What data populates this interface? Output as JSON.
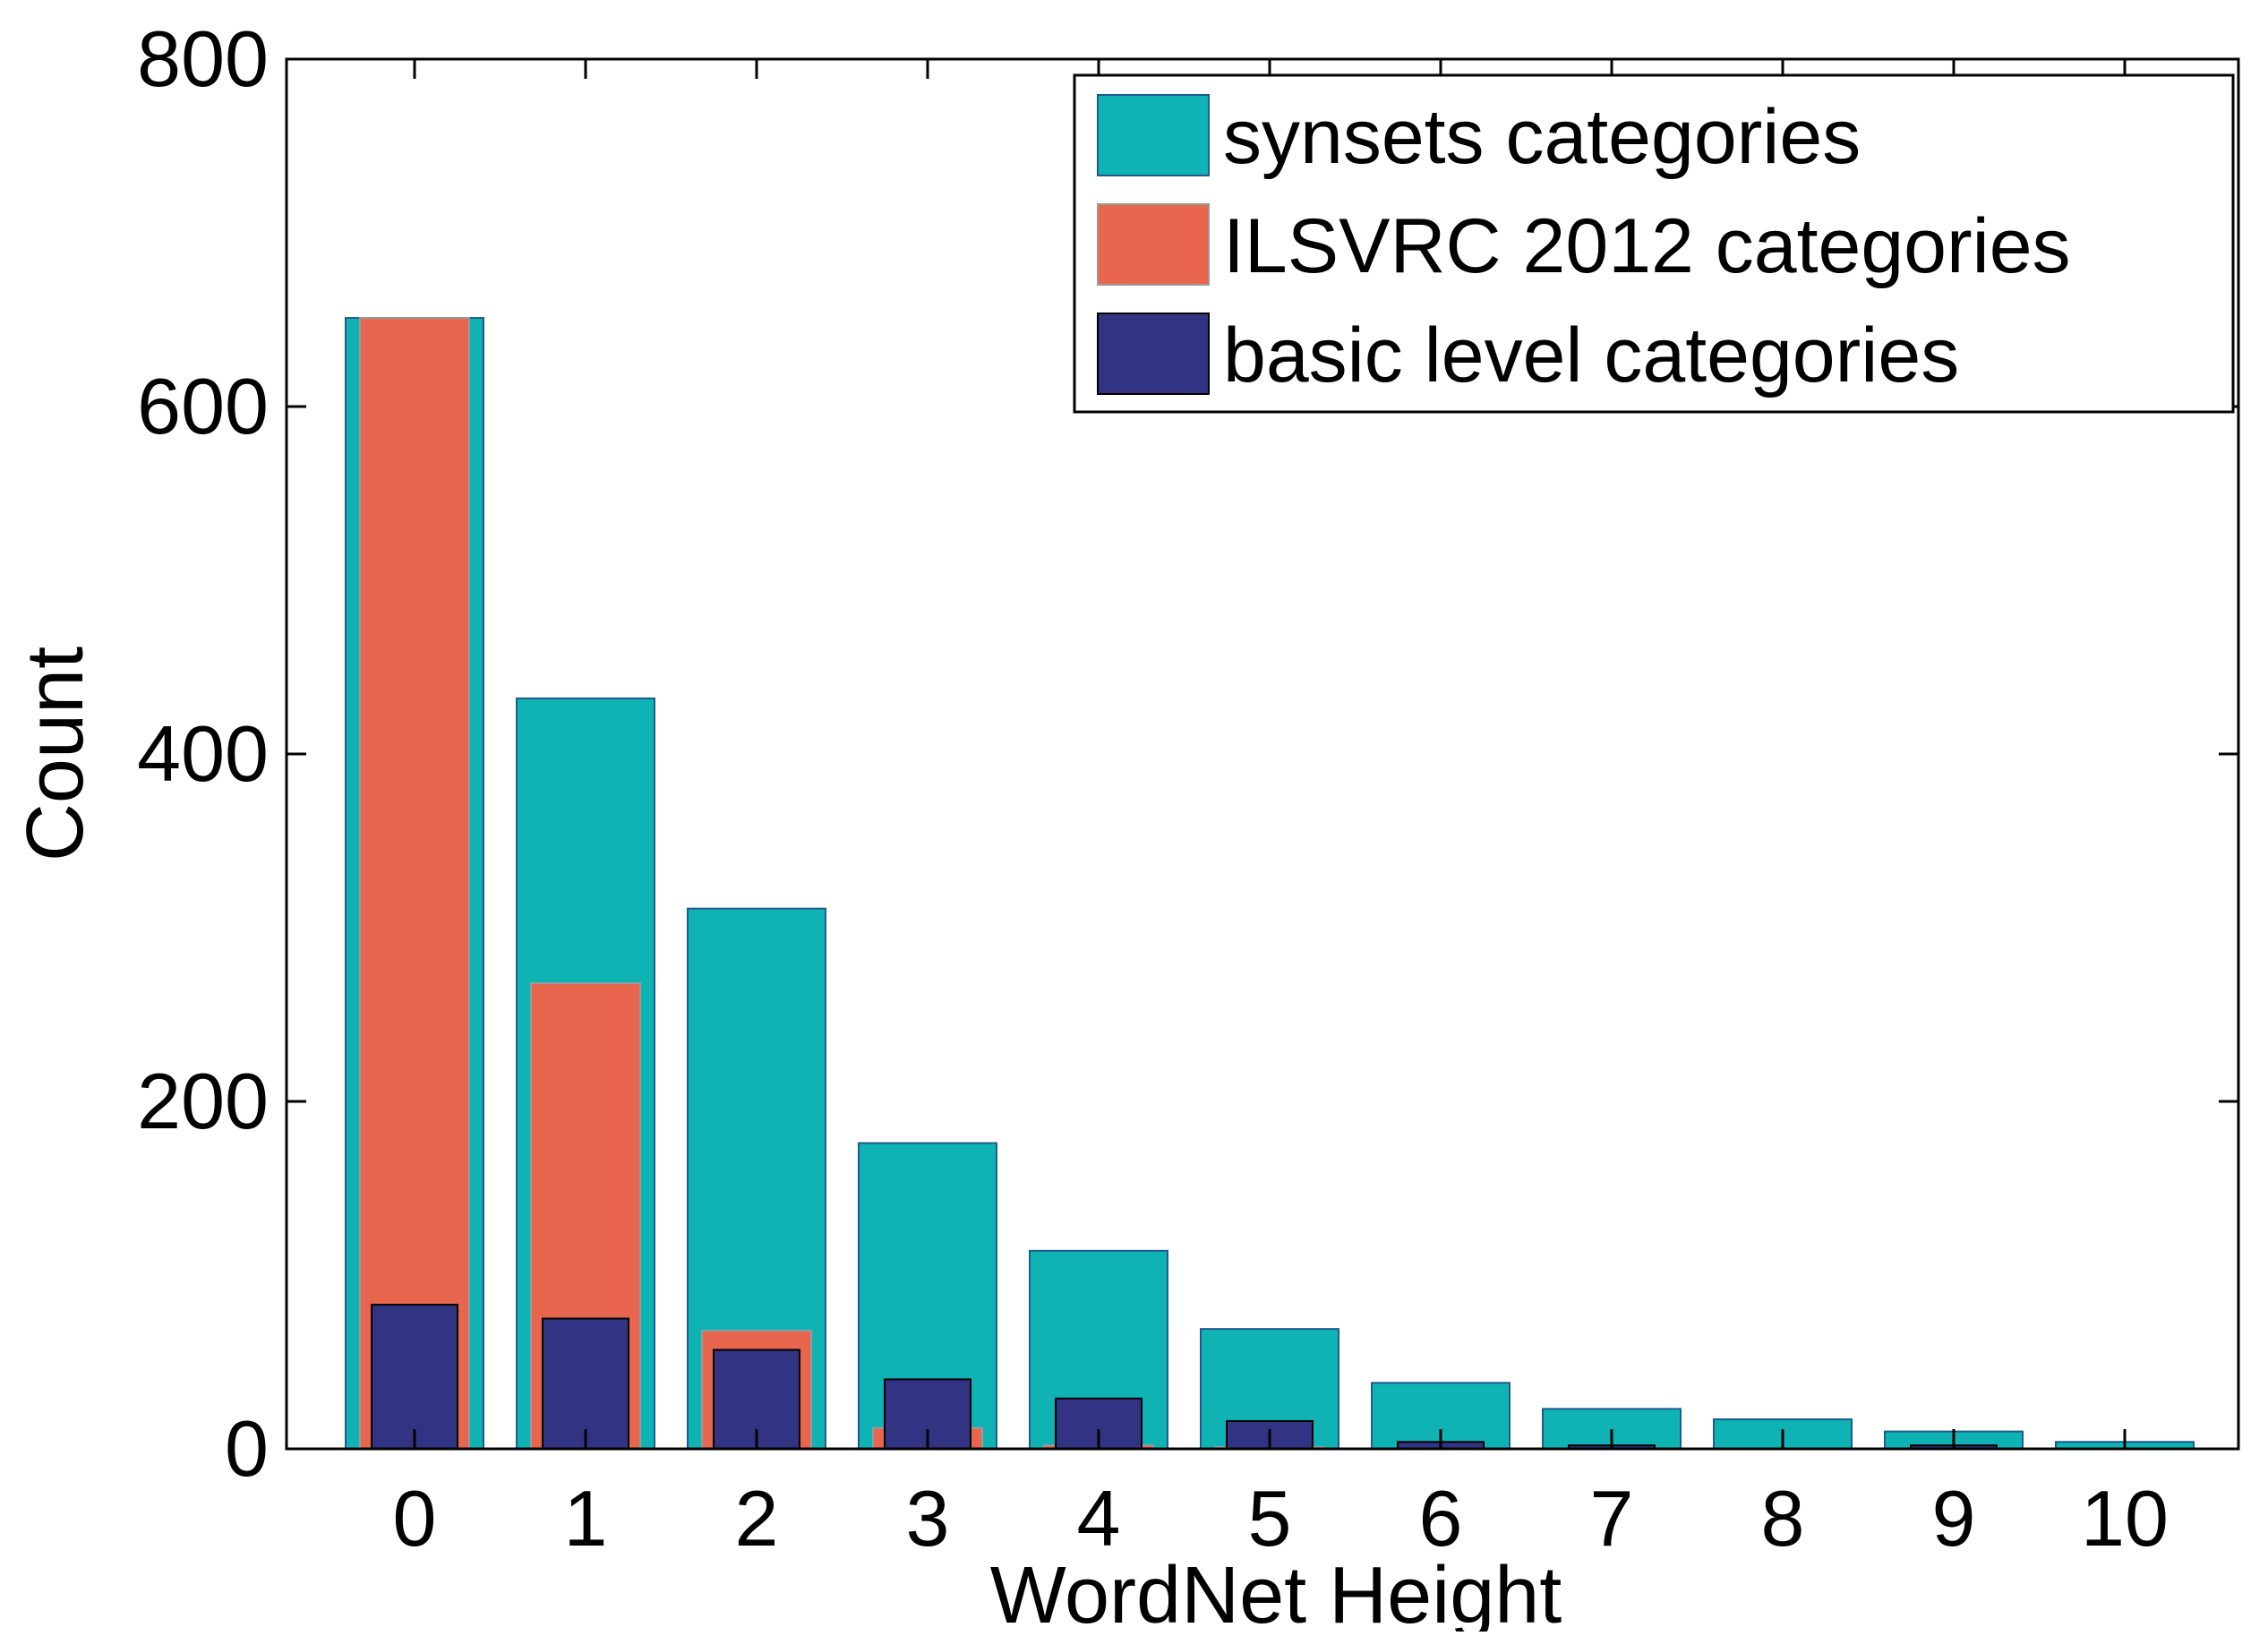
{
  "chart_data": {
    "type": "bar",
    "xlabel": "WordNet Height",
    "ylabel": "Count",
    "categories": [
      "0",
      "1",
      "2",
      "3",
      "4",
      "5",
      "6",
      "7",
      "8",
      "9",
      "10"
    ],
    "ylim": [
      0,
      800
    ],
    "yticks": [
      0,
      200,
      400,
      600,
      800
    ],
    "grid": false,
    "legend_position": "top-right",
    "series": [
      {
        "name": "synsets categories",
        "color": "#0FB3B3",
        "values": [
          651,
          432,
          311,
          176,
          114,
          69,
          38,
          23,
          17,
          10,
          4
        ]
      },
      {
        "name": "ILSVRC 2012 categories",
        "color": "#E8664E",
        "values": [
          651,
          268,
          68,
          12,
          2,
          1,
          0,
          0,
          0,
          0,
          0
        ]
      },
      {
        "name": "basic level categories",
        "color": "#323382",
        "values": [
          83,
          75,
          57,
          40,
          29,
          16,
          4,
          2,
          0,
          2,
          0
        ]
      }
    ]
  }
}
